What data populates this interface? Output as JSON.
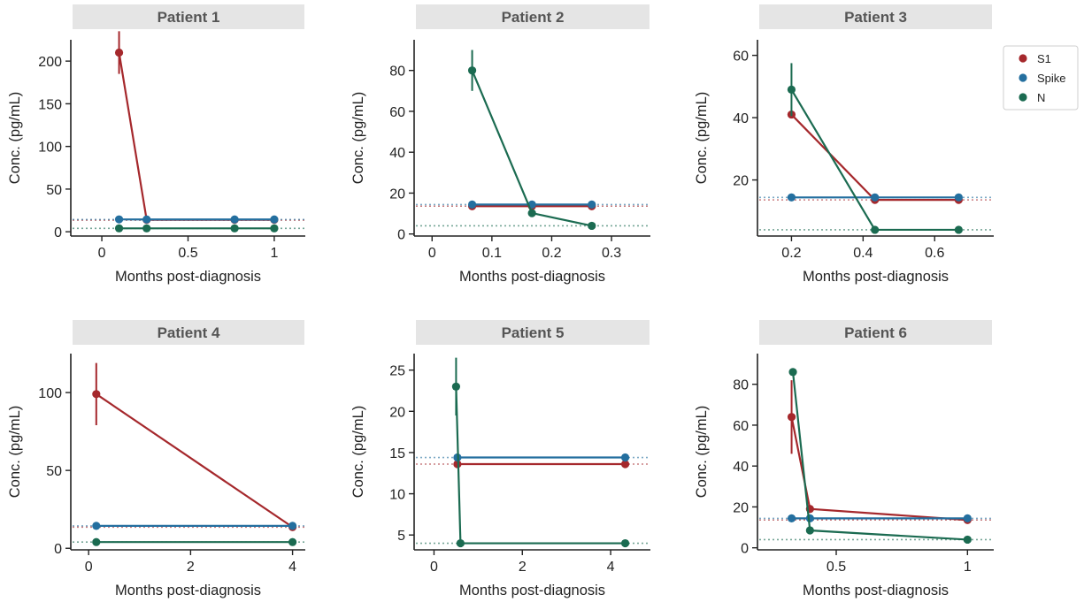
{
  "colors": {
    "S1": "#a5282c",
    "Spike": "#246f9f",
    "N": "#1b6b51"
  },
  "legend": [
    {
      "name": "S1",
      "color": "#a5282c"
    },
    {
      "name": "Spike",
      "color": "#246f9f"
    },
    {
      "name": "N",
      "color": "#1b6b51"
    }
  ],
  "chart_data": [
    {
      "type": "line",
      "title": "Patient 1",
      "xlabel": "Months post-diagnosis",
      "ylabel": "Conc.  (pg/mL)",
      "xlim": [
        -0.18,
        1.18
      ],
      "ylim": [
        -5,
        225
      ],
      "xticks": [
        0,
        0.5,
        1
      ],
      "xtick_labels": [
        "0",
        "0.5",
        "1"
      ],
      "yticks": [
        0,
        50,
        100,
        150,
        200
      ],
      "ytick_labels": [
        "0",
        "50",
        "100",
        "150",
        "200"
      ],
      "thresholds": [
        {
          "series": "S1",
          "y": 13.6
        },
        {
          "series": "Spike",
          "y": 14.4
        },
        {
          "series": "N",
          "y": 4.0
        }
      ],
      "series": [
        {
          "name": "S1",
          "x": [
            0.1,
            0.26,
            0.77,
            1.0
          ],
          "y": [
            210,
            14.0,
            14.0,
            14.0
          ],
          "err": [
            25,
            0,
            0,
            0
          ]
        },
        {
          "name": "Spike",
          "x": [
            0.1,
            0.26,
            0.77,
            1.0
          ],
          "y": [
            14.5,
            14.4,
            14.4,
            14.4
          ],
          "err": [
            0,
            0,
            0,
            0
          ]
        },
        {
          "name": "N",
          "x": [
            0.1,
            0.26,
            0.77,
            1.0
          ],
          "y": [
            4.0,
            4.0,
            4.0,
            4.0
          ],
          "err": [
            0,
            0,
            0,
            0
          ]
        }
      ]
    },
    {
      "type": "line",
      "title": "Patient 2",
      "xlabel": "Months post-diagnosis",
      "ylabel": "Conc.  (pg/mL)",
      "xlim": [
        -0.03,
        0.365
      ],
      "ylim": [
        -1,
        95
      ],
      "xticks": [
        0,
        0.1,
        0.2,
        0.3
      ],
      "xtick_labels": [
        "0",
        "0.1",
        "0.2",
        "0.3"
      ],
      "yticks": [
        0,
        20,
        40,
        60,
        80
      ],
      "ytick_labels": [
        "0",
        "20",
        "40",
        "60",
        "80"
      ],
      "thresholds": [
        {
          "series": "S1",
          "y": 13.6
        },
        {
          "series": "Spike",
          "y": 14.4
        },
        {
          "series": "N",
          "y": 4.0
        }
      ],
      "series": [
        {
          "name": "S1",
          "x": [
            0.067,
            0.167,
            0.267
          ],
          "y": [
            13.6,
            13.6,
            13.6
          ],
          "err": [
            0,
            0,
            0
          ]
        },
        {
          "name": "Spike",
          "x": [
            0.067,
            0.167,
            0.267
          ],
          "y": [
            14.4,
            14.4,
            14.4
          ],
          "err": [
            0,
            0,
            0
          ]
        },
        {
          "name": "N",
          "x": [
            0.067,
            0.167,
            0.267
          ],
          "y": [
            80,
            10.2,
            4.0
          ],
          "err": [
            10,
            0,
            0
          ]
        }
      ]
    },
    {
      "type": "line",
      "title": "Patient 3",
      "xlabel": "Months post-diagnosis",
      "ylabel": "Conc.  (pg/mL)",
      "xlim": [
        0.105,
        0.765
      ],
      "ylim": [
        2,
        65
      ],
      "xticks": [
        0.2,
        0.4,
        0.6
      ],
      "xtick_labels": [
        "0.2",
        "0.4",
        "0.6"
      ],
      "yticks": [
        20,
        40,
        60
      ],
      "ytick_labels": [
        "20",
        "40",
        "60"
      ],
      "thresholds": [
        {
          "series": "S1",
          "y": 13.6
        },
        {
          "series": "Spike",
          "y": 14.4
        },
        {
          "series": "N",
          "y": 4.0
        }
      ],
      "series": [
        {
          "name": "S1",
          "x": [
            0.2,
            0.433,
            0.667
          ],
          "y": [
            41,
            13.6,
            13.6
          ],
          "err": [
            0,
            0,
            0
          ]
        },
        {
          "name": "Spike",
          "x": [
            0.2,
            0.433,
            0.667
          ],
          "y": [
            14.4,
            14.4,
            14.4
          ],
          "err": [
            0,
            0,
            0
          ]
        },
        {
          "name": "N",
          "x": [
            0.2,
            0.433,
            0.667
          ],
          "y": [
            49,
            4.0,
            4.0
          ],
          "err": [
            8.5,
            0,
            0
          ]
        }
      ]
    },
    {
      "type": "line",
      "title": "Patient 4",
      "xlabel": "Months post-diagnosis",
      "ylabel": "Conc.  (pg/mL)",
      "xlim": [
        -0.35,
        4.25
      ],
      "ylim": [
        -1,
        125
      ],
      "xticks": [
        0,
        2,
        4
      ],
      "xtick_labels": [
        "0",
        "2",
        "4"
      ],
      "yticks": [
        0,
        50,
        100
      ],
      "ytick_labels": [
        "0",
        "50",
        "100"
      ],
      "thresholds": [
        {
          "series": "S1",
          "y": 13.6
        },
        {
          "series": "Spike",
          "y": 14.4
        },
        {
          "series": "N",
          "y": 4.0
        }
      ],
      "series": [
        {
          "name": "S1",
          "x": [
            0.15,
            4.0
          ],
          "y": [
            99,
            13.6
          ],
          "err": [
            20,
            0
          ]
        },
        {
          "name": "Spike",
          "x": [
            0.15,
            4.0
          ],
          "y": [
            14.4,
            14.4
          ],
          "err": [
            0,
            0
          ]
        },
        {
          "name": "N",
          "x": [
            0.15,
            4.0
          ],
          "y": [
            4.0,
            4.0
          ],
          "err": [
            0,
            0
          ]
        }
      ]
    },
    {
      "type": "line",
      "title": "Patient 5",
      "xlabel": "Months post-diagnosis",
      "ylabel": "Conc.  (pg/mL)",
      "xlim": [
        -0.45,
        4.9
      ],
      "ylim": [
        3.2,
        27
      ],
      "xticks": [
        0,
        2,
        4
      ],
      "xtick_labels": [
        "0",
        "2",
        "4"
      ],
      "yticks": [
        5,
        10,
        15,
        20,
        25
      ],
      "ytick_labels": [
        "5",
        "10",
        "15",
        "20",
        "25"
      ],
      "thresholds": [
        {
          "series": "S1",
          "y": 13.6
        },
        {
          "series": "Spike",
          "y": 14.4
        },
        {
          "series": "N",
          "y": 4.0
        }
      ],
      "series": [
        {
          "name": "S1",
          "x": [
            0.53,
            4.33
          ],
          "y": [
            13.6,
            13.6
          ],
          "err": [
            0,
            0
          ]
        },
        {
          "name": "Spike",
          "x": [
            0.53,
            4.33
          ],
          "y": [
            14.4,
            14.4
          ],
          "err": [
            0,
            0
          ]
        },
        {
          "name": "N",
          "x": [
            0.5,
            0.6,
            4.33
          ],
          "y": [
            23,
            4.0,
            4.0
          ],
          "err": [
            3.5,
            0,
            0
          ]
        }
      ]
    },
    {
      "type": "line",
      "title": "Patient 6",
      "xlabel": "Months post-diagnosis",
      "ylabel": "Conc.  (pg/mL)",
      "xlim": [
        0.2,
        1.1
      ],
      "ylim": [
        -1,
        95
      ],
      "xticks": [
        0.5,
        1
      ],
      "xtick_labels": [
        "0.5",
        "1"
      ],
      "yticks": [
        0,
        20,
        40,
        60,
        80
      ],
      "ytick_labels": [
        "0",
        "20",
        "40",
        "60",
        "80"
      ],
      "thresholds": [
        {
          "series": "S1",
          "y": 13.6
        },
        {
          "series": "Spike",
          "y": 14.4
        },
        {
          "series": "N",
          "y": 4.0
        }
      ],
      "series": [
        {
          "name": "S1",
          "x": [
            0.33,
            0.4,
            1.0
          ],
          "y": [
            64,
            19,
            13.6
          ],
          "err": [
            18,
            0,
            0
          ]
        },
        {
          "name": "Spike",
          "x": [
            0.33,
            0.4,
            1.0
          ],
          "y": [
            14.4,
            14.4,
            14.4
          ],
          "err": [
            0,
            0,
            0
          ]
        },
        {
          "name": "N",
          "x": [
            0.335,
            0.4,
            1.0
          ],
          "y": [
            86,
            8.5,
            4.0
          ],
          "err": [
            0,
            0,
            0
          ]
        }
      ]
    }
  ]
}
